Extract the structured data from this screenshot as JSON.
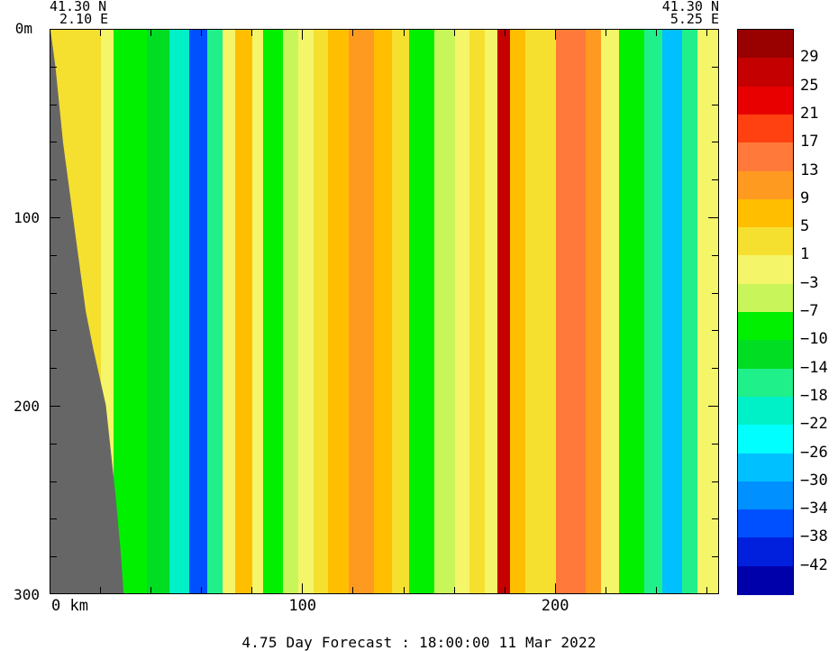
{
  "header": {
    "left_lat": "41.30 N",
    "left_lon": "2.10 E",
    "right_lat": "41.30 N",
    "right_lon": "5.25 E"
  },
  "footer": "4.75 Day Forecast : 18:00:00  11 Mar 2022",
  "chart_data": {
    "type": "heatmap",
    "x_axis": {
      "range": [
        0,
        265
      ],
      "ticks": [
        {
          "value": 0,
          "label": "0 km"
        },
        {
          "value": 100,
          "label": "100"
        },
        {
          "value": 200,
          "label": "200"
        }
      ]
    },
    "y_axis": {
      "range": [
        0,
        300
      ],
      "inverted": true,
      "ticks": [
        {
          "value": 0,
          "label": "0m"
        },
        {
          "value": 100,
          "label": "100"
        },
        {
          "value": 200,
          "label": "200"
        },
        {
          "value": 300,
          "label": "300"
        }
      ]
    },
    "colorbar": {
      "levels": [
        "29",
        "25",
        "21",
        "17",
        "13",
        "9",
        "5",
        "1",
        "-3",
        "-7",
        "-10",
        "-14",
        "-18",
        "-22",
        "-26",
        "-30",
        "-34",
        "-38",
        "-42"
      ],
      "colors": [
        "#990000",
        "#c40000",
        "#e80000",
        "#ff4010",
        "#ff7a3a",
        "#ff9a20",
        "#ffbf00",
        "#f5e030",
        "#f5f56a",
        "#c8f55a",
        "#00f000",
        "#00dd22",
        "#20f08a",
        "#00f0c8",
        "#00ffff",
        "#00c0ff",
        "#0090ff",
        "#0050ff",
        "#0020dd",
        "#0000aa"
      ]
    },
    "columns": [
      {
        "x": [
          0,
          20
        ],
        "value": 1
      },
      {
        "x": [
          20,
          25
        ],
        "value": -3
      },
      {
        "x": [
          25,
          38
        ],
        "value": -10
      },
      {
        "x": [
          38,
          47
        ],
        "value": -14
      },
      {
        "x": [
          47,
          55
        ],
        "value": -22
      },
      {
        "x": [
          55,
          62
        ],
        "value": -38
      },
      {
        "x": [
          62,
          68
        ],
        "value": -18
      },
      {
        "x": [
          68,
          73
        ],
        "value": -3
      },
      {
        "x": [
          73,
          80
        ],
        "value": 5
      },
      {
        "x": [
          80,
          84
        ],
        "value": -3
      },
      {
        "x": [
          84,
          92
        ],
        "value": -10
      },
      {
        "x": [
          92,
          98
        ],
        "value": -7
      },
      {
        "x": [
          98,
          104
        ],
        "value": -3
      },
      {
        "x": [
          104,
          110
        ],
        "value": 1
      },
      {
        "x": [
          110,
          118
        ],
        "value": 5
      },
      {
        "x": [
          118,
          128
        ],
        "value": 9
      },
      {
        "x": [
          128,
          135
        ],
        "value": 5
      },
      {
        "x": [
          135,
          142
        ],
        "value": 1
      },
      {
        "x": [
          142,
          152
        ],
        "value": -10
      },
      {
        "x": [
          152,
          160
        ],
        "value": -7
      },
      {
        "x": [
          160,
          166
        ],
        "value": -3
      },
      {
        "x": [
          166,
          172
        ],
        "value": 1
      },
      {
        "x": [
          172,
          177
        ],
        "value": -3
      },
      {
        "x": [
          177,
          182
        ],
        "value": 25
      },
      {
        "x": [
          182,
          188
        ],
        "value": 5
      },
      {
        "x": [
          188,
          200
        ],
        "value": 1
      },
      {
        "x": [
          200,
          212
        ],
        "value": 13
      },
      {
        "x": [
          212,
          218
        ],
        "value": 9
      },
      {
        "x": [
          218,
          225
        ],
        "value": -3
      },
      {
        "x": [
          225,
          235
        ],
        "value": -10
      },
      {
        "x": [
          235,
          242
        ],
        "value": -18
      },
      {
        "x": [
          242,
          250
        ],
        "value": -30
      },
      {
        "x": [
          250,
          256
        ],
        "value": -18
      },
      {
        "x": [
          256,
          265
        ],
        "value": -3
      }
    ],
    "land_mask": {
      "depth": [
        0,
        20,
        60,
        100,
        150,
        170,
        200,
        250,
        280,
        300
      ],
      "x": [
        0,
        2,
        5,
        9,
        14,
        17,
        22,
        26,
        28,
        29
      ]
    }
  }
}
